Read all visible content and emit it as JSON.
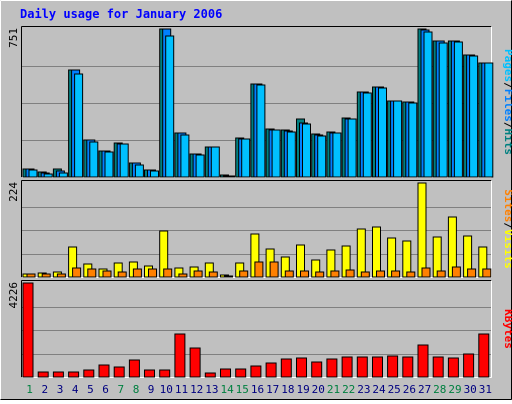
{
  "chart_data": {
    "type": "bar",
    "title": "Daily usage for January 2006",
    "categories": [
      "1",
      "2",
      "3",
      "4",
      "5",
      "6",
      "7",
      "8",
      "9",
      "10",
      "11",
      "12",
      "13",
      "14",
      "15",
      "16",
      "17",
      "18",
      "19",
      "20",
      "21",
      "22",
      "23",
      "24",
      "25",
      "26",
      "27",
      "28",
      "29",
      "30",
      "31"
    ],
    "weekend_days": [
      "1",
      "7",
      "8",
      "14",
      "15",
      "21",
      "22",
      "28",
      "29"
    ],
    "colors": {
      "background": "#C0C0C0",
      "title": "#0000FF",
      "pages": "#00C0FF",
      "files": "#0080FF",
      "hits": "#008080",
      "visits": "#FFFF00",
      "sites": "#FF8000",
      "kbytes": "#FF0000",
      "weekday_label": "#000080",
      "weekend_label": "#008040",
      "grid": "#808080"
    },
    "panels": [
      {
        "id": "hits-files-pages",
        "max_label": "751",
        "ylim": [
          0,
          751
        ],
        "ylabel_parts": [
          {
            "text": "Pages",
            "color": "#00C0FF"
          },
          {
            "text": "/",
            "color": "#000000"
          },
          {
            "text": "Files",
            "color": "#0080FF"
          },
          {
            "text": "/",
            "color": "#000000"
          },
          {
            "text": "Hits",
            "color": "#008080"
          }
        ],
        "series": [
          {
            "name": "Hits",
            "color": "#008080",
            "values": [
              41,
              27,
              41,
              545,
              189,
              133,
              172,
              72,
              37,
              751,
              224,
              119,
              152,
              10,
              200,
              473,
              244,
              237,
              292,
              218,
              226,
              300,
              430,
              457,
              387,
              381,
              751,
              690,
              690,
              620,
              580
            ]
          },
          {
            "name": "Files",
            "color": "#0080FF",
            "values": [
              41,
              19,
              29,
              545,
              187,
              131,
              167,
              69,
              34,
              751,
              221,
              116,
              150,
              6,
              194,
              472,
              240,
              233,
              273,
              215,
              223,
              295,
              429,
              455,
              385,
              380,
              747,
              689,
              688,
              619,
              578
            ]
          },
          {
            "name": "Pages",
            "color": "#00C0FF",
            "values": [
              35,
              15,
              18,
              525,
              178,
              127,
              166,
              61,
              30,
              715,
              214,
              110,
              151,
              5,
              191,
              466,
              236,
              228,
              267,
              209,
              223,
              294,
              425,
              454,
              384,
              376,
              737,
              680,
              684,
              614,
              577
            ]
          }
        ]
      },
      {
        "id": "visits-sites",
        "max_label": "224",
        "ylim": [
          0,
          224
        ],
        "ylabel_parts": [
          {
            "text": "Sites",
            "color": "#FF8000"
          },
          {
            "text": "/",
            "color": "#000000"
          },
          {
            "text": "Visits",
            "color": "#FFFF00"
          }
        ],
        "series": [
          {
            "name": "Visits",
            "color": "#FFFF00",
            "values": [
              8,
              10,
              11,
              72,
              32,
              20,
              34,
              36,
              27,
              110,
              22,
              24,
              33,
              4,
              34,
              103,
              67,
              48,
              77,
              40,
              65,
              75,
              115,
              118,
              94,
              85,
              224,
              95,
              142,
              98,
              72
            ]
          },
          {
            "name": "Sites",
            "color": "#FF8000",
            "values": [
              7,
              6,
              8,
              21,
              18,
              15,
              13,
              19,
              18,
              20,
              8,
              15,
              13,
              3,
              15,
              35,
              35,
              15,
              15,
              12,
              15,
              17,
              13,
              15,
              14,
              13,
              21,
              15,
              24,
              20,
              18
            ]
          }
        ]
      },
      {
        "id": "kbytes",
        "max_label": "4226",
        "ylim": [
          0,
          4226
        ],
        "ylabel_parts": [
          {
            "text": "KBytes",
            "color": "#FF0000"
          }
        ],
        "series": [
          {
            "name": "KBytes",
            "color": "#FF0000",
            "values": [
              4226,
              240,
              240,
              240,
              330,
              550,
              460,
              770,
              300,
              310,
              1950,
              1300,
              200,
              350,
              340,
              480,
              650,
              820,
              860,
              680,
              800,
              880,
              890,
              920,
              950,
              880,
              1450,
              900,
              850,
              1050,
              1950
            ]
          }
        ]
      }
    ]
  }
}
